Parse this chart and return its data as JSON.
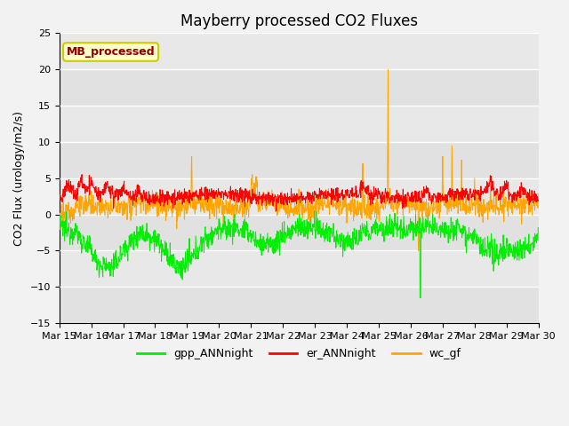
{
  "title": "Mayberry processed CO2 Fluxes",
  "ylabel": "CO2 Flux (urology/m2/s)",
  "ylim": [
    -15,
    25
  ],
  "yticks": [
    -15,
    -10,
    -5,
    0,
    5,
    10,
    15,
    20,
    25
  ],
  "xlabel_dates": [
    "Mar 15",
    "Mar 16",
    "Mar 17",
    "Mar 18",
    "Mar 19",
    "Mar 20",
    "Mar 21",
    "Mar 22",
    "Mar 23",
    "Mar 24",
    "Mar 25",
    "Mar 26",
    "Mar 27",
    "Mar 28",
    "Mar 29",
    "Mar 30"
  ],
  "annotation_text": "MB_processed",
  "annotation_color": "#8B0000",
  "annotation_bg": "#FFFFCC",
  "annotation_edge": "#CCCC00",
  "line_colors": {
    "gpp": "#00EE00",
    "er": "#FF0000",
    "wc": "#FFA500"
  },
  "legend_labels": [
    "gpp_ANNnight",
    "er_ANNnight",
    "wc_gf"
  ],
  "background_color": "#E8E8E8",
  "plot_bg_light": "#F0F0F0",
  "grid_color": "#FFFFFF",
  "title_fontsize": 12,
  "label_fontsize": 9,
  "tick_fontsize": 8,
  "n_points": 1440
}
